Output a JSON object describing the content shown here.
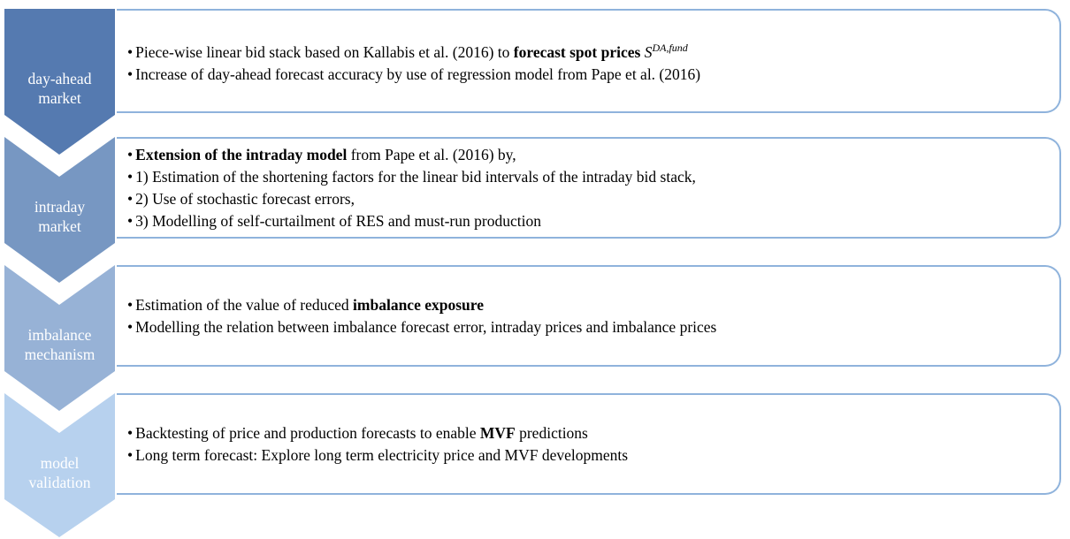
{
  "stages": [
    {
      "label": [
        "day-ahead",
        "market"
      ],
      "color": "#557ab0",
      "bullets": [
        [
          {
            "text": "Piece-wise linear bid stack based on Kallabis et al. (2016) to "
          },
          {
            "text": "forecast spot prices",
            "bold": true
          },
          {
            "text": " S",
            "italic": true
          },
          {
            "text": "DA,fund",
            "sup": true
          }
        ],
        [
          {
            "text": "Increase of day-ahead forecast accuracy by use of regression model from Pape et al. (2016)"
          }
        ]
      ]
    },
    {
      "label": [
        "intraday",
        "market"
      ],
      "color": "#7797c2",
      "bullets": [
        [
          {
            "text": "Extension of the intraday model",
            "bold": true
          },
          {
            "text": " from Pape et al. (2016) by,"
          }
        ],
        [
          {
            "text": "1) Estimation of the shortening factors for the linear bid intervals of the intraday bid stack,"
          }
        ],
        [
          {
            "text": "2) Use of stochastic forecast errors,"
          }
        ],
        [
          {
            "text": "3) Modelling of self-curtailment of RES and must-run production"
          }
        ]
      ]
    },
    {
      "label": [
        "imbalance",
        "mechanism"
      ],
      "color": "#97b2d6",
      "bullets": [
        [
          {
            "text": "Estimation of the value of reduced "
          },
          {
            "text": "imbalance exposure",
            "bold": true
          }
        ],
        [
          {
            "text": "Modelling the relation between imbalance forecast error, intraday prices and imbalance prices"
          }
        ]
      ]
    },
    {
      "label": [
        "model",
        "validation"
      ],
      "color": "#b7d1ee",
      "bullets": [
        [
          {
            "text": "Backtesting of price and production forecasts to enable "
          },
          {
            "text": "MVF",
            "bold": true
          },
          {
            "text": " predictions"
          }
        ],
        [
          {
            "text": "Long term forecast: Explore long term electricity price and MVF developments"
          }
        ]
      ]
    }
  ]
}
